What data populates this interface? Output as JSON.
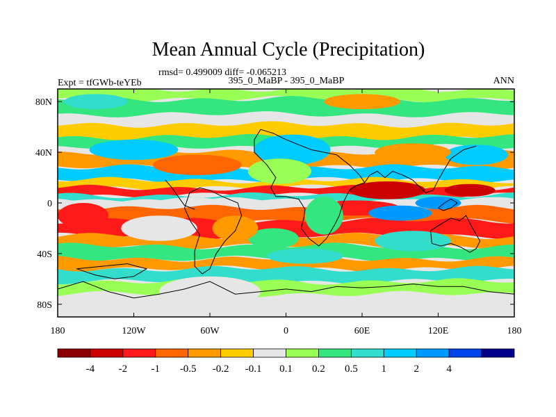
{
  "chart_data": {
    "type": "heatmap",
    "title": "Mean Annual Cycle (Precipitation)",
    "stats_line": "rmsd= 0.499009 diff= -0.065213",
    "left_label": "Expt = tfGWb-teYEb",
    "center_label": "395_0_MaBP - 395_0_MaBP",
    "right_label": "ANN",
    "xlabel": "",
    "ylabel": "",
    "xlim": [
      -180,
      180
    ],
    "ylim": [
      -90,
      90
    ],
    "x_ticks": [
      {
        "value": -180,
        "label": "180"
      },
      {
        "value": -120,
        "label": "120W"
      },
      {
        "value": -60,
        "label": "60W"
      },
      {
        "value": 0,
        "label": "0"
      },
      {
        "value": 60,
        "label": "60E"
      },
      {
        "value": 120,
        "label": "120E"
      },
      {
        "value": 180,
        "label": "180"
      }
    ],
    "y_ticks": [
      {
        "value": 80,
        "label": "80N"
      },
      {
        "value": 40,
        "label": "40N"
      },
      {
        "value": 0,
        "label": "0"
      },
      {
        "value": -40,
        "label": "40S"
      },
      {
        "value": -80,
        "label": "80S"
      }
    ],
    "colorbar": {
      "colors": [
        "#8b0000",
        "#cc0000",
        "#ff1a1a",
        "#ff6600",
        "#ff9900",
        "#ffcc00",
        "#e6e6e6",
        "#99ff55",
        "#33e680",
        "#33ddcc",
        "#00ccff",
        "#0099ff",
        "#0044ee",
        "#00008b"
      ],
      "labels": [
        "-4",
        "-2",
        "-1",
        "-0.5",
        "-0.2",
        "-0.1",
        "0.1",
        "0.2",
        "0.5",
        "1",
        "2",
        "4"
      ]
    },
    "field_bands": [
      {
        "lat_min": 82,
        "lat_max": 90,
        "level": 7
      },
      {
        "lat_min": 70,
        "lat_max": 82,
        "level": 8
      },
      {
        "lat_min": 50,
        "lat_max": 62,
        "level": 5
      },
      {
        "lat_min": 44,
        "lat_max": 52,
        "level": 8
      },
      {
        "lat_min": 28,
        "lat_max": 40,
        "level": 4
      },
      {
        "lat_min": 18,
        "lat_max": 28,
        "level": 10
      },
      {
        "lat_min": 12,
        "lat_max": 18,
        "level": 5
      },
      {
        "lat_min": 6,
        "lat_max": 12,
        "level": 2
      },
      {
        "lat_min": 2,
        "lat_max": 6,
        "level": 9
      },
      {
        "lat_min": -4,
        "lat_max": 2,
        "level": 6
      },
      {
        "lat_min": -14,
        "lat_max": -4,
        "level": 3
      },
      {
        "lat_min": -26,
        "lat_max": -14,
        "level": 2
      },
      {
        "lat_min": -34,
        "lat_max": -26,
        "level": 4
      },
      {
        "lat_min": -44,
        "lat_max": -34,
        "level": 8
      },
      {
        "lat_min": -52,
        "lat_max": -44,
        "level": 4
      },
      {
        "lat_min": -62,
        "lat_max": -52,
        "level": 9
      },
      {
        "lat_min": -72,
        "lat_max": -62,
        "level": 7
      }
    ],
    "field_blobs": [
      {
        "lon": 80,
        "lat": 10,
        "rlon": 30,
        "rlat": 7,
        "level": 1
      },
      {
        "lon": 145,
        "lat": 10,
        "rlon": 20,
        "rlat": 5,
        "level": 1
      },
      {
        "lon": 55,
        "lat": -4,
        "rlon": 35,
        "rlat": 6,
        "level": 2
      },
      {
        "lon": -160,
        "lat": -10,
        "rlon": 20,
        "rlat": 10,
        "level": 2
      },
      {
        "lon": 90,
        "lat": -8,
        "rlon": 25,
        "rlat": 6,
        "level": 11
      },
      {
        "lon": 120,
        "lat": 0,
        "rlon": 18,
        "rlat": 5,
        "level": 11
      },
      {
        "lon": 5,
        "lat": 42,
        "rlon": 30,
        "rlat": 12,
        "level": 10
      },
      {
        "lon": -5,
        "lat": 25,
        "rlon": 25,
        "rlat": 10,
        "level": 7
      },
      {
        "lon": -120,
        "lat": 42,
        "rlon": 35,
        "rlat": 8,
        "level": 10
      },
      {
        "lon": 150,
        "lat": 38,
        "rlon": 25,
        "rlat": 8,
        "level": 10
      },
      {
        "lon": 100,
        "lat": 40,
        "rlon": 30,
        "rlat": 7,
        "level": 4
      },
      {
        "lon": -70,
        "lat": 30,
        "rlon": 35,
        "rlat": 8,
        "level": 3
      },
      {
        "lon": -100,
        "lat": -20,
        "rlon": 30,
        "rlat": 10,
        "level": 6
      },
      {
        "lon": -10,
        "lat": -28,
        "rlon": 20,
        "rlat": 8,
        "level": 8
      },
      {
        "lon": 15,
        "lat": -42,
        "rlon": 30,
        "rlat": 6,
        "level": 9
      },
      {
        "lon": 100,
        "lat": -30,
        "rlon": 30,
        "rlat": 8,
        "level": 9
      },
      {
        "lon": -60,
        "lat": -70,
        "rlon": 40,
        "rlat": 12,
        "level": 6
      },
      {
        "lon": 60,
        "lat": 80,
        "rlon": 30,
        "rlat": 6,
        "level": 4
      },
      {
        "lon": -150,
        "lat": 80,
        "rlon": 25,
        "rlat": 6,
        "level": 9
      },
      {
        "lon": 30,
        "lat": -10,
        "rlon": 15,
        "rlat": 15,
        "level": 8
      },
      {
        "lon": -40,
        "lat": -20,
        "rlon": 18,
        "rlat": 10,
        "level": 4
      }
    ],
    "coastlines": [
      [
        [
          -20,
          58
        ],
        [
          -10,
          55
        ],
        [
          0,
          50
        ],
        [
          10,
          46
        ],
        [
          20,
          42
        ],
        [
          30,
          40
        ],
        [
          40,
          38
        ],
        [
          50,
          30
        ],
        [
          58,
          22
        ],
        [
          62,
          16
        ],
        [
          66,
          22
        ],
        [
          72,
          25
        ],
        [
          78,
          20
        ],
        [
          84,
          25
        ],
        [
          92,
          22
        ],
        [
          100,
          18
        ],
        [
          106,
          12
        ],
        [
          110,
          8
        ],
        [
          116,
          10
        ],
        [
          120,
          18
        ],
        [
          124,
          25
        ],
        [
          130,
          35
        ],
        [
          140,
          42
        ],
        [
          150,
          45
        ]
      ],
      [
        [
          -20,
          58
        ],
        [
          -25,
          50
        ],
        [
          -25,
          40
        ],
        [
          -15,
          30
        ],
        [
          -8,
          20
        ],
        [
          -12,
          12
        ],
        [
          -8,
          5
        ],
        [
          0,
          5
        ],
        [
          10,
          3
        ],
        [
          15,
          -5
        ],
        [
          14,
          -12
        ],
        [
          12,
          -20
        ],
        [
          18,
          -28
        ],
        [
          26,
          -34
        ],
        [
          32,
          -28
        ],
        [
          38,
          -18
        ],
        [
          42,
          -10
        ],
        [
          45,
          0
        ],
        [
          50,
          10
        ],
        [
          56,
          14
        ],
        [
          62,
          16
        ]
      ],
      [
        [
          -60,
          10
        ],
        [
          -50,
          5
        ],
        [
          -38,
          0
        ],
        [
          -35,
          -10
        ],
        [
          -40,
          -22
        ],
        [
          -48,
          -30
        ],
        [
          -55,
          -40
        ],
        [
          -60,
          -52
        ],
        [
          -66,
          -56
        ],
        [
          -72,
          -50
        ],
        [
          -72,
          -38
        ],
        [
          -68,
          -25
        ],
        [
          -75,
          -15
        ],
        [
          -80,
          -4
        ],
        [
          -76,
          8
        ],
        [
          -68,
          12
        ],
        [
          -60,
          10
        ]
      ],
      [
        [
          -72,
          -5
        ],
        [
          -80,
          -2
        ],
        [
          -85,
          5
        ],
        [
          -90,
          12
        ],
        [
          -95,
          18
        ]
      ],
      [
        [
          114,
          -22
        ],
        [
          120,
          -18
        ],
        [
          130,
          -12
        ],
        [
          137,
          -14
        ],
        [
          142,
          -10
        ],
        [
          146,
          -18
        ],
        [
          150,
          -25
        ],
        [
          153,
          -30
        ],
        [
          150,
          -36
        ],
        [
          145,
          -39
        ],
        [
          138,
          -35
        ],
        [
          130,
          -32
        ],
        [
          122,
          -34
        ],
        [
          115,
          -32
        ],
        [
          114,
          -22
        ]
      ],
      [
        [
          -180,
          -68
        ],
        [
          -160,
          -62
        ],
        [
          -140,
          -70
        ],
        [
          -120,
          -75
        ],
        [
          -100,
          -72
        ],
        [
          -80,
          -68
        ],
        [
          -60,
          -62
        ],
        [
          -40,
          -72
        ],
        [
          -20,
          -70
        ],
        [
          0,
          -68
        ],
        [
          20,
          -70
        ],
        [
          40,
          -66
        ],
        [
          60,
          -67
        ],
        [
          80,
          -66
        ],
        [
          100,
          -64
        ],
        [
          120,
          -66
        ],
        [
          140,
          -66
        ],
        [
          160,
          -70
        ],
        [
          180,
          -72
        ]
      ],
      [
        [
          -165,
          -52
        ],
        [
          -150,
          -57
        ],
        [
          -135,
          -60
        ],
        [
          -120,
          -58
        ],
        [
          -110,
          -52
        ],
        [
          -125,
          -48
        ],
        [
          -145,
          -50
        ],
        [
          -165,
          -52
        ]
      ],
      [
        [
          120,
          -4
        ],
        [
          125,
          0
        ],
        [
          130,
          3
        ],
        [
          135,
          0
        ],
        [
          130,
          -4
        ],
        [
          124,
          -6
        ],
        [
          120,
          -4
        ]
      ]
    ]
  }
}
